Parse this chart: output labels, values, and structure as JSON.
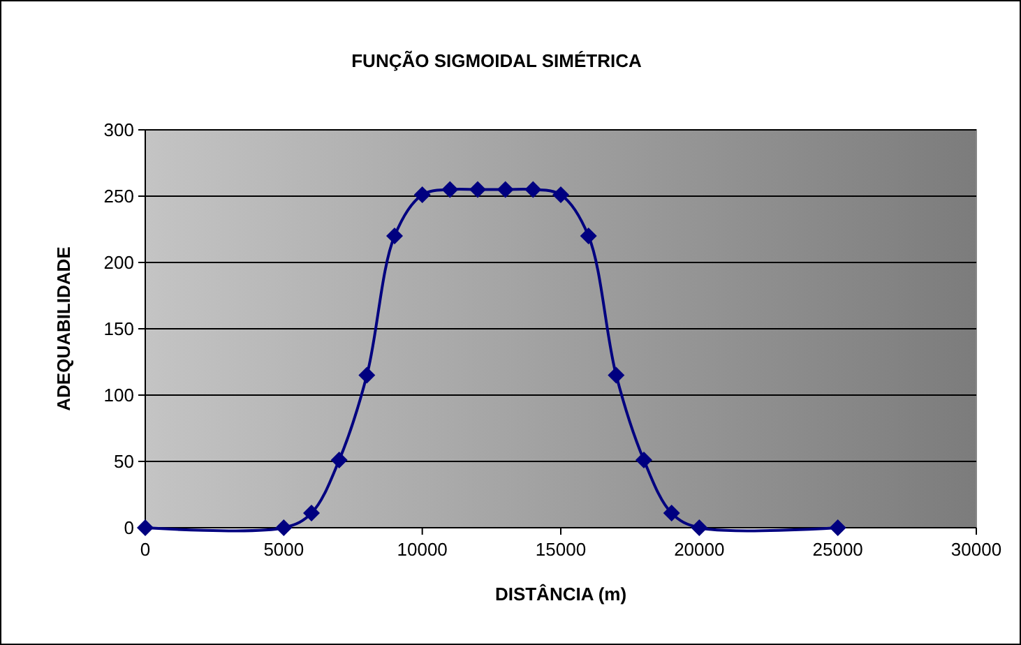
{
  "chart_data": {
    "type": "line",
    "title": "FUNÇÃO SIGMOIDAL SIMÉTRICA",
    "xlabel": "DISTÂNCIA (m)",
    "ylabel": "ADEQUABILIDADE",
    "x": [
      0,
      5000,
      6000,
      7000,
      8000,
      9000,
      10000,
      11000,
      12000,
      13000,
      14000,
      15000,
      16000,
      17000,
      18000,
      19000,
      20000,
      25000
    ],
    "series": [
      {
        "color": "#000080",
        "values": [
          0,
          0,
          11,
          51,
          115,
          220,
          251,
          255,
          255,
          255,
          255,
          251,
          220,
          115,
          51,
          11,
          0,
          0
        ]
      }
    ],
    "xlim": [
      0,
      30000
    ],
    "xticks": [
      0,
      5000,
      10000,
      15000,
      20000,
      25000,
      30000
    ],
    "ylim": [
      0,
      300
    ],
    "yticks": [
      0,
      50,
      100,
      150,
      200,
      250,
      300
    ],
    "grid": "y",
    "marker": "diamond",
    "line_style": "solid"
  }
}
